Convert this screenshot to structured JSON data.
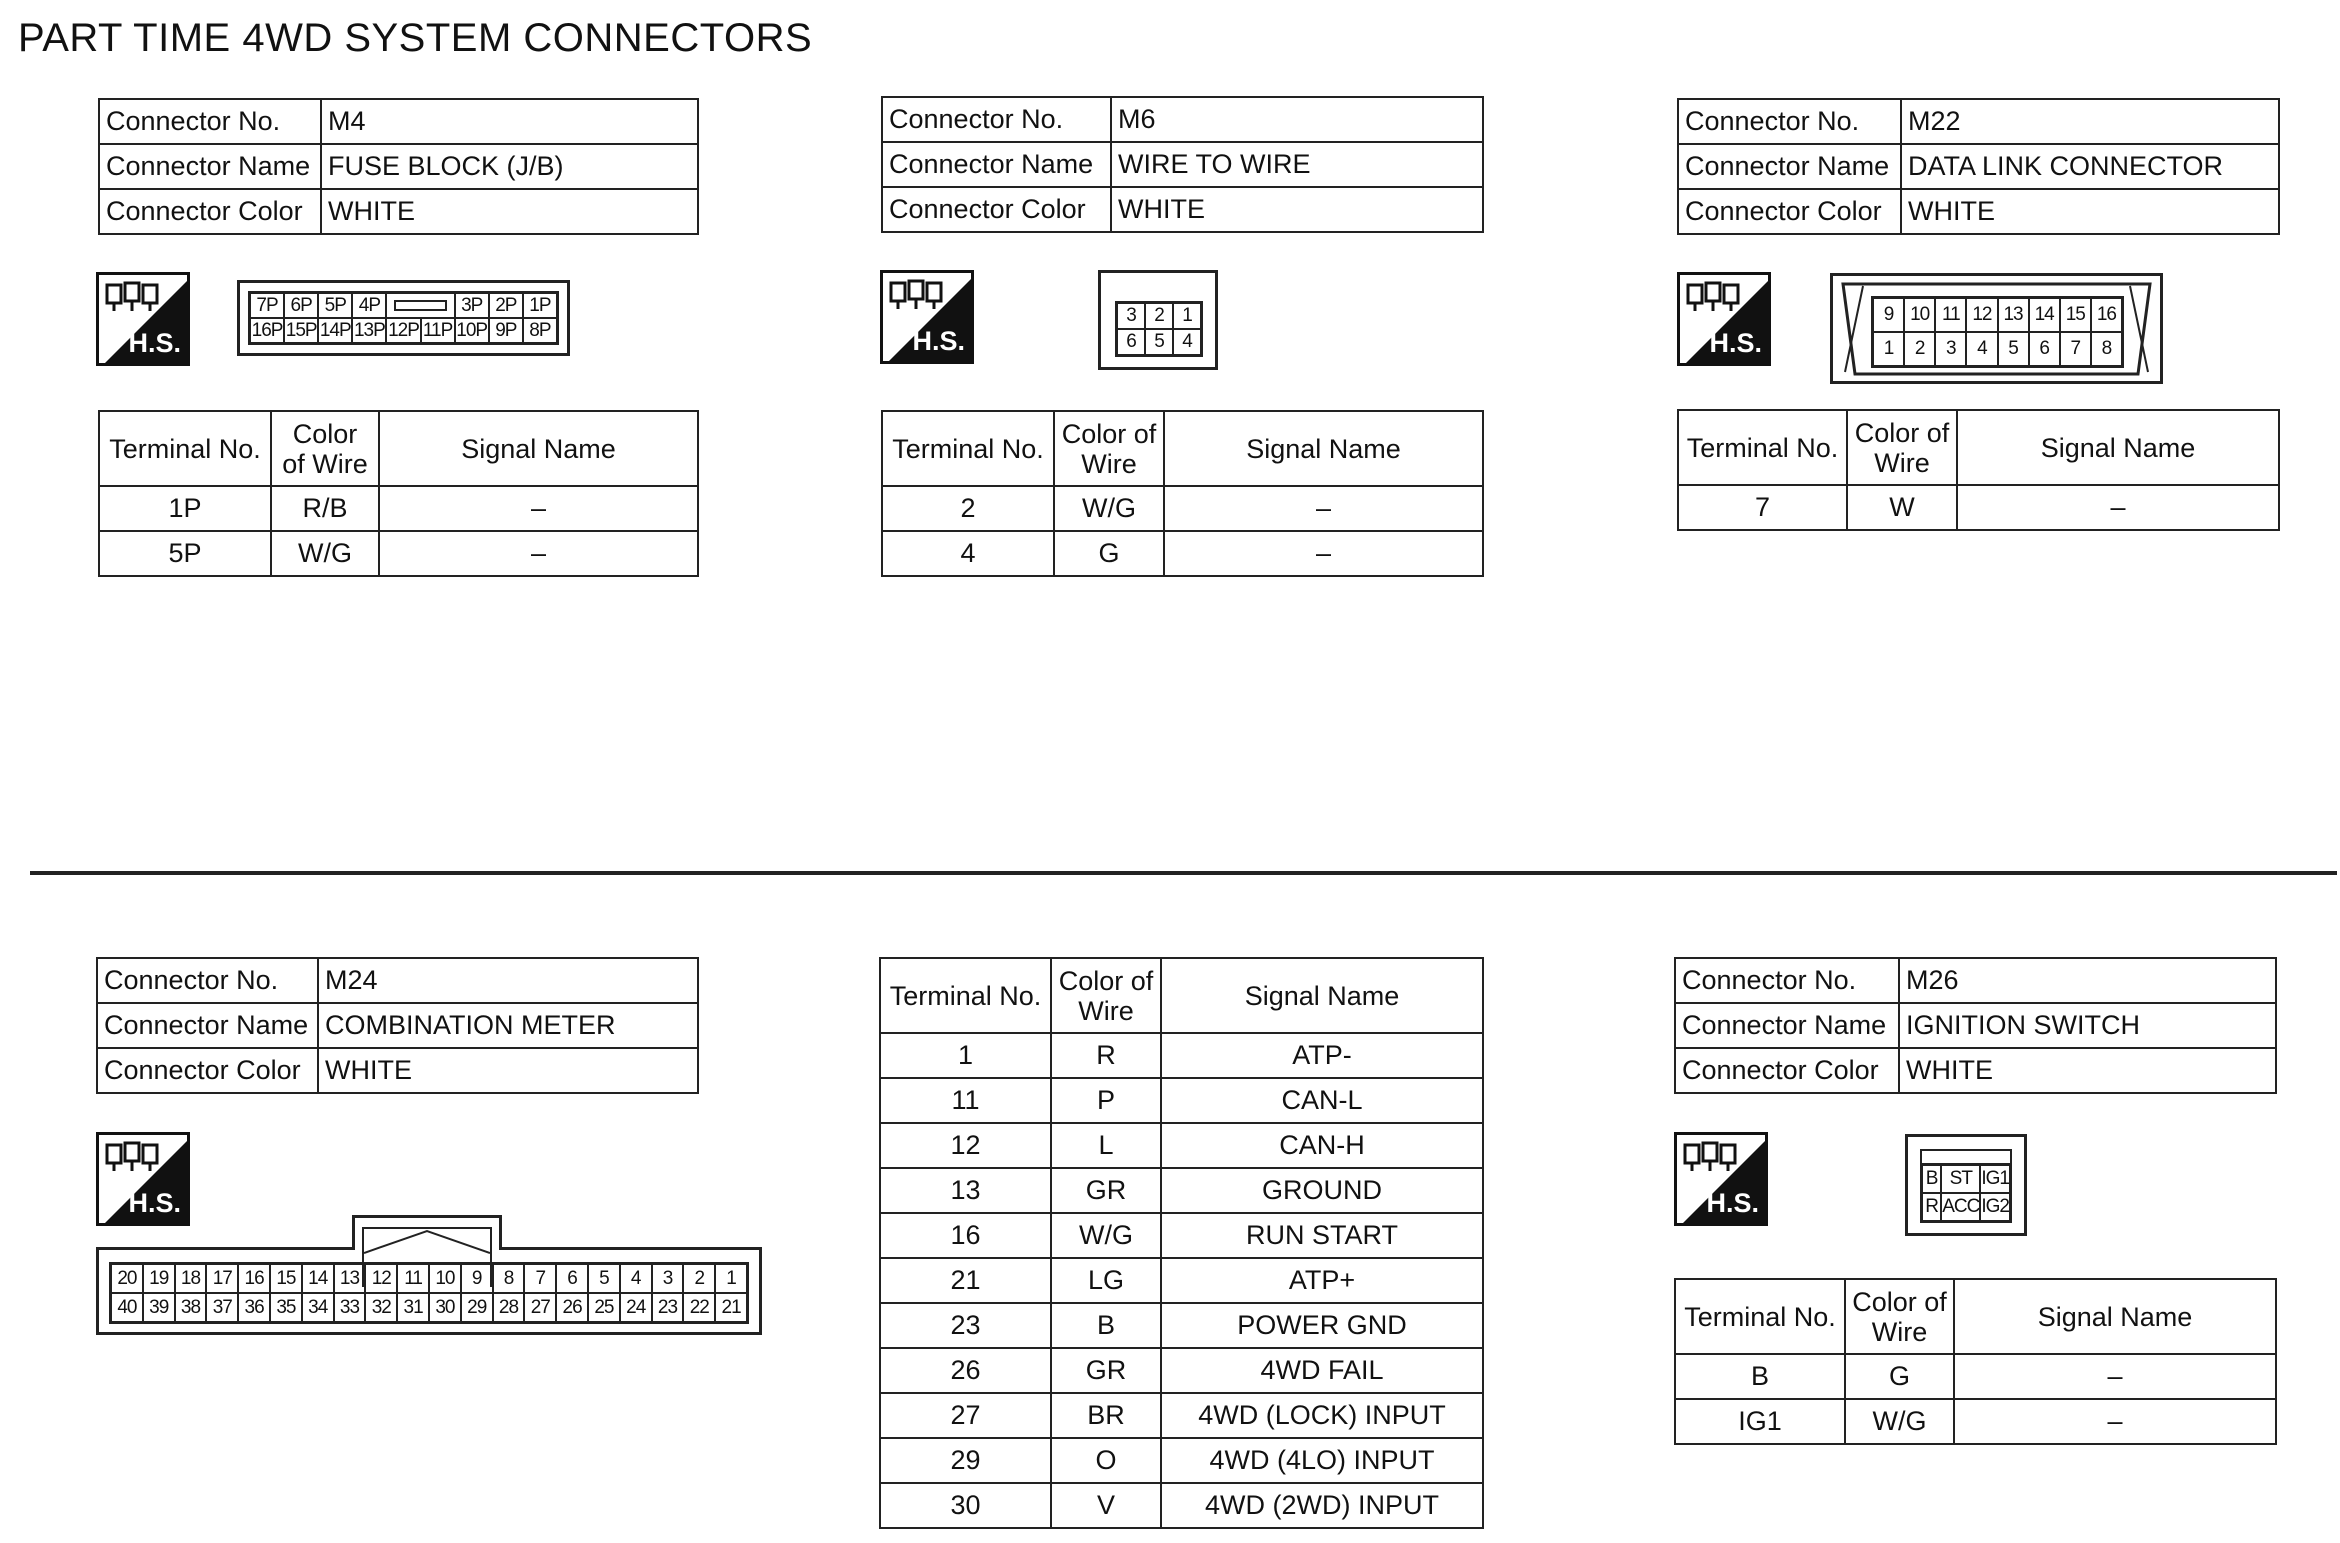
{
  "title": "PART TIME 4WD SYSTEM CONNECTORS",
  "labels": {
    "connector_no": "Connector No.",
    "connector_name": "Connector Name",
    "connector_color": "Connector Color",
    "terminal_no": "Terminal No.",
    "color_of_wire": "Color of Wire",
    "signal_name": "Signal Name",
    "hs": "H.S."
  },
  "connectors": {
    "m4": {
      "no": "M4",
      "name": "FUSE BLOCK (J/B)",
      "color": "WHITE",
      "pins_top": [
        "7P",
        "6P",
        "5P",
        "4P",
        null,
        "3P",
        "2P",
        "1P"
      ],
      "pins_bottom": [
        "16P",
        "15P",
        "14P",
        "13P",
        "12P",
        "11P",
        "10P",
        "9P",
        "8P"
      ],
      "terminals": [
        [
          "1P",
          "R/B",
          "–"
        ],
        [
          "5P",
          "W/G",
          "–"
        ]
      ]
    },
    "m6": {
      "no": "M6",
      "name": "WIRE TO WIRE",
      "color": "WHITE",
      "pins_top": [
        "3",
        "2",
        "1"
      ],
      "pins_bottom": [
        "6",
        "5",
        "4"
      ],
      "terminals": [
        [
          "2",
          "W/G",
          "–"
        ],
        [
          "4",
          "G",
          "–"
        ]
      ]
    },
    "m22": {
      "no": "M22",
      "name": "DATA LINK CONNECTOR",
      "color": "WHITE",
      "pins_top": [
        "9",
        "10",
        "11",
        "12",
        "13",
        "14",
        "15",
        "16"
      ],
      "pins_bottom": [
        "1",
        "2",
        "3",
        "4",
        "5",
        "6",
        "7",
        "8"
      ],
      "terminals": [
        [
          "7",
          "W",
          "–"
        ]
      ]
    },
    "m24": {
      "no": "M24",
      "name": "COMBINATION METER",
      "color": "WHITE",
      "pins_top": [
        "20",
        "19",
        "18",
        "17",
        "16",
        "15",
        "14",
        "13",
        "12",
        "11",
        "10",
        "9",
        "8",
        "7",
        "6",
        "5",
        "4",
        "3",
        "2",
        "1"
      ],
      "pins_bottom": [
        "40",
        "39",
        "38",
        "37",
        "36",
        "35",
        "34",
        "33",
        "32",
        "31",
        "30",
        "29",
        "28",
        "27",
        "26",
        "25",
        "24",
        "23",
        "22",
        "21"
      ],
      "terminals": [
        [
          "1",
          "R",
          "ATP-"
        ],
        [
          "11",
          "P",
          "CAN-L"
        ],
        [
          "12",
          "L",
          "CAN-H"
        ],
        [
          "13",
          "GR",
          "GROUND"
        ],
        [
          "16",
          "W/G",
          "RUN START"
        ],
        [
          "21",
          "LG",
          "ATP+"
        ],
        [
          "23",
          "B",
          "POWER GND"
        ],
        [
          "26",
          "GR",
          "4WD FAIL"
        ],
        [
          "27",
          "BR",
          "4WD (LOCK) INPUT"
        ],
        [
          "29",
          "O",
          "4WD (4LO) INPUT"
        ],
        [
          "30",
          "V",
          "4WD (2WD) INPUT"
        ]
      ]
    },
    "m26": {
      "no": "M26",
      "name": "IGNITION SWITCH",
      "color": "WHITE",
      "pins_top": [
        "B",
        "ST",
        "IG1"
      ],
      "pins_bottom": [
        "R",
        "ACC",
        "IG2"
      ],
      "terminals": [
        [
          "B",
          "G",
          "–"
        ],
        [
          "IG1",
          "W/G",
          "–"
        ]
      ]
    }
  }
}
